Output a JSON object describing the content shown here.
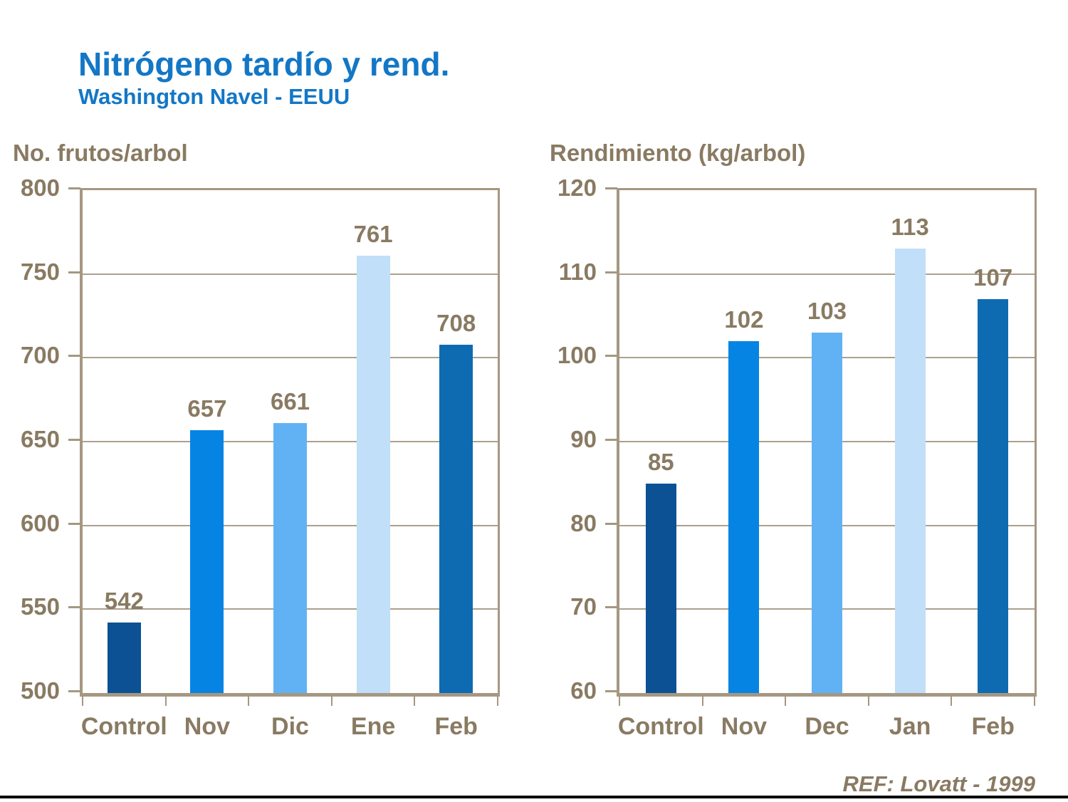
{
  "page": {
    "title": "Nitrógeno tardío y rend.",
    "subtitle": "Washington Navel - EEUU",
    "reference": "REF: Lovatt - 1999"
  },
  "colors": {
    "title_blue": "#1377C6",
    "label_brown": "#897A62",
    "axis_tan": "#A59782",
    "gridline_tan": "#ACA08E",
    "footer_line": "#000000",
    "bar_control": "#0B5194",
    "bar_month_1": "#0584E4",
    "bar_month_2": "#61B2F4",
    "bar_month_3": "#C1DFF8",
    "bar_month_4": "#0E6BB2"
  },
  "chart_data": [
    {
      "type": "bar",
      "title": "No. frutos/arbol",
      "categories": [
        "Control",
        "Nov",
        "Dic",
        "Ene",
        "Feb"
      ],
      "values": [
        542,
        657,
        661,
        761,
        708
      ],
      "value_labels": [
        "542",
        "657",
        "661",
        "761",
        "708"
      ],
      "bar_colors": [
        "#0B5194",
        "#0584E4",
        "#61B2F4",
        "#C1DFF8",
        "#0E6BB2"
      ],
      "ylim": [
        500,
        800
      ],
      "ytick_step": 50,
      "ytick_labels": [
        "500",
        "550",
        "600",
        "650",
        "700",
        "750",
        "800"
      ],
      "xlabel": "",
      "ylabel": "No. frutos/arbol",
      "grid": true,
      "legend": false
    },
    {
      "type": "bar",
      "title": "Rendimiento (kg/arbol)",
      "categories": [
        "Control",
        "Nov",
        "Dec",
        "Jan",
        "Feb"
      ],
      "values": [
        85,
        102,
        103,
        113,
        107
      ],
      "value_labels": [
        "85",
        "102",
        "103",
        "113",
        "107"
      ],
      "bar_colors": [
        "#0B5194",
        "#0584E4",
        "#61B2F4",
        "#C1DFF8",
        "#0E6BB2"
      ],
      "ylim": [
        60,
        120
      ],
      "ytick_step": 10,
      "ytick_labels": [
        "60",
        "70",
        "80",
        "90",
        "100",
        "110",
        "120"
      ],
      "xlabel": "",
      "ylabel": "Rendimiento (kg/arbol)",
      "grid": true,
      "legend": false
    }
  ]
}
